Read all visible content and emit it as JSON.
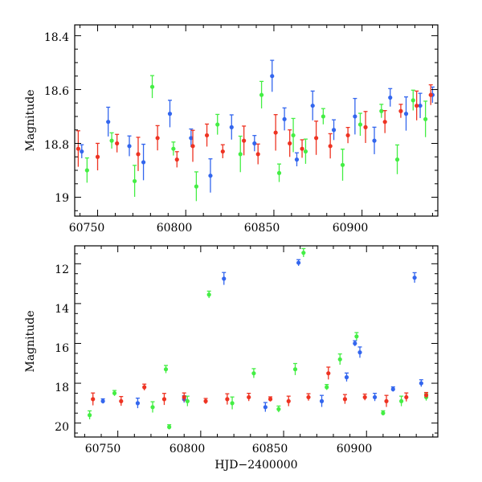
{
  "chart_data": [
    {
      "type": "scatter",
      "panel": "top",
      "xlabel": "",
      "ylabel": "Magnitude",
      "xlim": [
        60737,
        60943
      ],
      "ylim": [
        19.07,
        18.36
      ],
      "y_inverted": true,
      "xticks": [
        "60750",
        "60800",
        "60850",
        "60900"
      ],
      "yticks": [
        "18.4",
        "18.6",
        "18.8",
        "19"
      ],
      "series": [
        {
          "color": "#3366ee",
          "x": [
            60741,
            60756,
            60768,
            60776,
            60791,
            60803,
            60814,
            60826,
            60839,
            60849,
            60856,
            60863,
            60872,
            60884,
            60896,
            60907,
            60916,
            60925,
            60933,
            60940
          ],
          "y": [
            18.83,
            18.72,
            18.81,
            18.87,
            18.69,
            18.78,
            18.92,
            18.74,
            18.8,
            18.55,
            18.71,
            18.86,
            18.66,
            18.75,
            18.7,
            18.79,
            18.63,
            18.69,
            18.66,
            18.62
          ]
        },
        {
          "color": "#44ee44",
          "x": [
            60744,
            60758,
            60771,
            60781,
            60793,
            60806,
            60818,
            60831,
            60843,
            60853,
            60861,
            60868,
            60878,
            60889,
            60899,
            60911,
            60920,
            60929,
            60936
          ],
          "y": [
            18.9,
            18.79,
            18.94,
            18.59,
            18.82,
            18.96,
            18.73,
            18.84,
            18.62,
            18.91,
            18.77,
            18.83,
            18.7,
            18.88,
            18.73,
            18.68,
            18.86,
            18.64,
            18.71
          ]
        },
        {
          "color": "#ee3322",
          "x": [
            60739,
            60750,
            60761,
            60773,
            60784,
            60795,
            60804,
            60812,
            60821,
            60833,
            60841,
            60851,
            60859,
            60866,
            60874,
            60882,
            60892,
            60902,
            60913,
            60922,
            60931,
            60939
          ],
          "y": [
            18.82,
            18.85,
            18.8,
            18.84,
            18.78,
            18.86,
            18.81,
            18.77,
            18.83,
            18.79,
            18.84,
            18.76,
            18.8,
            18.82,
            18.78,
            18.81,
            18.77,
            18.74,
            18.72,
            18.68,
            18.66,
            18.62
          ]
        }
      ]
    },
    {
      "type": "scatter",
      "panel": "bottom",
      "xlabel": "HJD−2400000",
      "ylabel": "Magnitude",
      "xlim": [
        60724,
        60943
      ],
      "ylim": [
        20.7,
        11.1
      ],
      "y_inverted": true,
      "xticks": [
        "60750",
        "60800",
        "60850",
        "60900"
      ],
      "yticks": [
        "12",
        "14",
        "16",
        "18",
        "20"
      ],
      "series": [
        {
          "color": "#3366ee",
          "x": [
            60741,
            60762,
            60790,
            60814,
            60839,
            60859,
            60873,
            60888,
            60893,
            60896,
            60905,
            60916,
            60929,
            60933
          ],
          "y": [
            18.9,
            19.0,
            18.8,
            12.75,
            19.2,
            11.95,
            18.9,
            17.7,
            16.0,
            16.45,
            18.7,
            18.3,
            12.7,
            18.0
          ]
        },
        {
          "color": "#44ee44",
          "x": [
            60733,
            60748,
            60771,
            60779,
            60781,
            60792,
            60805,
            60819,
            60832,
            60847,
            60857,
            60862,
            60876,
            60884,
            60894,
            60910,
            60921,
            60936
          ],
          "y": [
            19.6,
            18.5,
            19.2,
            17.3,
            20.2,
            18.9,
            13.55,
            19.0,
            17.5,
            19.3,
            17.3,
            11.45,
            18.2,
            16.8,
            15.65,
            19.5,
            18.9,
            18.7
          ]
        },
        {
          "color": "#ee3322",
          "x": [
            60735,
            60752,
            60766,
            60778,
            60790,
            60803,
            60816,
            60829,
            60842,
            60853,
            60865,
            60877,
            60887,
            60899,
            60912,
            60924,
            60936
          ],
          "y": [
            18.8,
            18.9,
            18.2,
            18.8,
            18.7,
            18.9,
            18.8,
            18.7,
            18.8,
            18.9,
            18.7,
            17.5,
            18.8,
            18.7,
            18.9,
            18.7,
            18.6
          ]
        }
      ]
    }
  ]
}
